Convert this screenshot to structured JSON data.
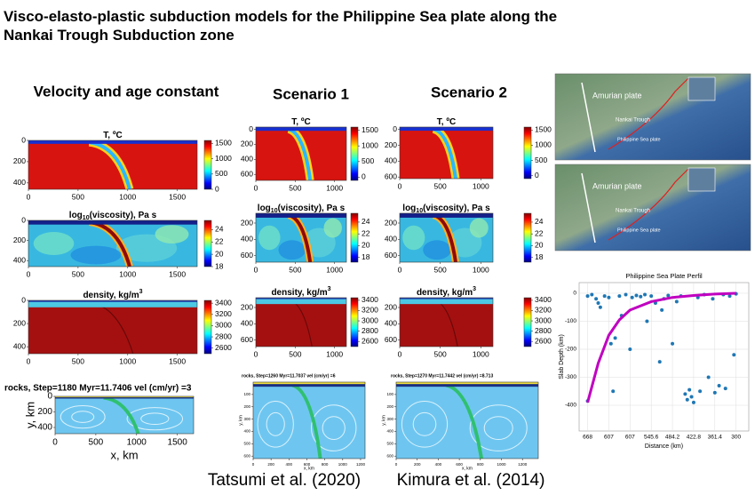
{
  "header": {
    "title": "Visco-elasto-plastic subduction models for the Philippine Sea plate along the Nankai Trough Subduction zone"
  },
  "columns": [
    {
      "heading": "Velocity and age constant",
      "panels": [
        {
          "kind": "T",
          "title": {
            "text": "T, ºC"
          },
          "xlim": [
            0,
            1700
          ],
          "ylim": [
            0,
            460
          ],
          "xticks": [
            0,
            500,
            1000,
            1500
          ],
          "yticks": [
            0,
            200,
            400
          ],
          "clim": [
            0,
            1600
          ],
          "cticks": [
            1500,
            1000,
            500,
            0
          ]
        },
        {
          "kind": "visc",
          "title": {
            "text": "log",
            "sub": "10",
            "after": "(viscosity), Pa s"
          },
          "xlim": [
            0,
            1700
          ],
          "ylim": [
            0,
            460
          ],
          "xticks": [
            0,
            500,
            1000,
            1500
          ],
          "yticks": [
            0,
            200,
            400
          ],
          "clim": [
            18,
            25.5
          ],
          "cticks": [
            24,
            22,
            20,
            18
          ]
        },
        {
          "kind": "dens",
          "title": {
            "text": "density, kg/m",
            "sup": "3"
          },
          "xlim": [
            0,
            1700
          ],
          "ylim": [
            0,
            460
          ],
          "xticks": [
            0,
            500,
            1000,
            1500
          ],
          "yticks": [
            0,
            200,
            400
          ],
          "clim": [
            2500,
            3450
          ],
          "cticks": [
            3400,
            3200,
            3000,
            2800,
            2600
          ]
        }
      ],
      "rocks": {
        "title": "rocks, Step=1180 Myr=11.7406 vel (cm/yr) =3",
        "xlim": [
          0,
          1700
        ],
        "ylim": [
          0,
          480
        ],
        "xticks": [
          0,
          500,
          1000,
          1500
        ],
        "yticks": [
          0,
          200,
          400
        ],
        "xlabel": "x, km",
        "ylabel": "y, km"
      }
    },
    {
      "heading": "Scenario  1",
      "panels": [
        {
          "kind": "T",
          "title": {
            "text": "T, ºC"
          },
          "xlim": [
            0,
            1150
          ],
          "ylim": [
            -30,
            680
          ],
          "xticks": [
            0,
            500,
            1000
          ],
          "yticks": [
            0,
            200,
            400,
            600
          ],
          "clim": [
            -100,
            1600
          ],
          "cticks": [
            1500,
            1000,
            500,
            0
          ]
        },
        {
          "kind": "visc",
          "title": {
            "text": "log",
            "sub": "10",
            "after": "(viscosity), Pa s"
          },
          "xlim": [
            0,
            1150
          ],
          "ylim": [
            80,
            680
          ],
          "xticks": [
            0,
            500,
            1000
          ],
          "yticks": [
            200,
            400,
            600
          ],
          "clim": [
            17.2,
            25.5
          ],
          "cticks": [
            24,
            22,
            20,
            18
          ]
        },
        {
          "kind": "dens",
          "title": {
            "text": "density, kg/m",
            "sup": "3"
          },
          "xlim": [
            0,
            1150
          ],
          "ylim": [
            80,
            680
          ],
          "xticks": [
            0,
            500,
            1000
          ],
          "yticks": [
            200,
            400,
            600
          ],
          "clim": [
            2500,
            3450
          ],
          "cticks": [
            3400,
            3200,
            3000,
            2800,
            2600
          ]
        }
      ],
      "rocks": {
        "title": "rocks, Step=1260 Myr=11.7037 vel (cm/yr) =6",
        "xlim": [
          0,
          1250
        ],
        "ylim": [
          0,
          620
        ],
        "xticks": [
          0,
          200,
          400,
          600,
          800,
          1000,
          1200
        ],
        "yticks": [
          100,
          200,
          300,
          400,
          500,
          600
        ],
        "xlabel": "x, km",
        "ylabel": "y, km"
      }
    },
    {
      "heading": "Scenario  2",
      "panels": [
        {
          "kind": "T",
          "title": {
            "text": "T, ºC"
          },
          "xlim": [
            0,
            1150
          ],
          "ylim": [
            -30,
            620
          ],
          "xticks": [
            0,
            500,
            1000
          ],
          "yticks": [
            0,
            200,
            400,
            600
          ],
          "clim": [
            -100,
            1600
          ],
          "cticks": [
            1500,
            1000,
            500,
            0
          ]
        },
        {
          "kind": "visc",
          "title": {
            "text": "log",
            "sub": "10",
            "after": "(viscosity), Pa s"
          },
          "xlim": [
            0,
            1150
          ],
          "ylim": [
            80,
            680
          ],
          "xticks": [
            0,
            500,
            1000
          ],
          "yticks": [
            200,
            400,
            600
          ],
          "clim": [
            17.2,
            25.5
          ],
          "cticks": [
            24,
            22,
            20,
            18
          ]
        },
        {
          "kind": "dens",
          "title": {
            "text": "density, kg/m",
            "sup": "3"
          },
          "xlim": [
            0,
            1150
          ],
          "ylim": [
            80,
            680
          ],
          "xticks": [
            0,
            500,
            1000
          ],
          "yticks": [
            200,
            400,
            600
          ],
          "clim": [
            2500,
            3450
          ],
          "cticks": [
            3400,
            3200,
            3000,
            2800,
            2600
          ]
        }
      ],
      "rocks": {
        "title": "rocks, Step=1270 Myr=11.7442 vel (cm/yr) =8.713",
        "xlim": [
          0,
          1350
        ],
        "ylim": [
          0,
          620
        ],
        "xticks": [
          0,
          200,
          400,
          600,
          800,
          1000,
          1200
        ],
        "yticks": [
          100,
          200,
          300,
          400,
          500,
          600
        ],
        "xlabel": "x, km",
        "ylabel": "y, km"
      }
    }
  ],
  "captions": [
    "Tatsumi et al. (2020)",
    "Kimura et al. (2014)"
  ],
  "maps": [
    {
      "labels": [
        "Amurian plate",
        "Nankai Trough",
        "Philippine Sea plate"
      ]
    },
    {
      "labels": [
        "Amurian plate",
        "Nankai Trough",
        "Philippine Sea plate"
      ]
    }
  ],
  "chart_data": {
    "type": "scatter",
    "title": "Philippine Sea Plate Perfil",
    "xlabel": "Distance (km)",
    "ylabel": "Slab Depth (km)",
    "grid": true,
    "xlim": [
      -0.4,
      7.6
    ],
    "ylim": [
      -492,
      38
    ],
    "xticks": [
      {
        "value": 0,
        "label": "668"
      },
      {
        "value": 1,
        "label": "607"
      },
      {
        "value": 2,
        "label": "607"
      },
      {
        "value": 3,
        "label": "545.6"
      },
      {
        "value": 4,
        "label": "484.2"
      },
      {
        "value": 5,
        "label": "422.8"
      },
      {
        "value": 6,
        "label": "361.4"
      },
      {
        "value": 7,
        "label": "300"
      }
    ],
    "yticks": [
      0,
      -100,
      -200,
      -300,
      -400
    ],
    "series": [
      {
        "color": "#1f77b4",
        "x": [
          0,
          0,
          0.2,
          0.4,
          0.5,
          0.6,
          0.8,
          1,
          1.1,
          1.2,
          1.3,
          1.5,
          1.6,
          1.8,
          2,
          2.1,
          2.3,
          2.5,
          2.7,
          2.8,
          3,
          3.2,
          3.4,
          3.5,
          3.6,
          3.8,
          4,
          4.2,
          4.4,
          4.6,
          4.7,
          4.8,
          4.9,
          5,
          5.2,
          5.3,
          5.5,
          5.7,
          5.9,
          6,
          6.2,
          6.4,
          6.5,
          6.7,
          6.9,
          7
        ],
        "values": [
          -385,
          -10,
          -5,
          -20,
          -35,
          -50,
          -10,
          -15,
          -180,
          -350,
          -160,
          -10,
          -80,
          -5,
          -200,
          -15,
          -8,
          -12,
          -5,
          -100,
          -10,
          -35,
          -245,
          -60,
          -20,
          -8,
          -180,
          -30,
          -10,
          -360,
          -380,
          -345,
          -370,
          -390,
          -15,
          -350,
          -5,
          -300,
          -20,
          -355,
          -330,
          -5,
          -340,
          -10,
          -220,
          -2
        ]
      },
      {
        "color": "#c000c0",
        "mode": "line",
        "x": [
          0,
          0.5,
          1,
          1.5,
          2,
          3,
          4,
          5,
          6,
          7
        ],
        "values": [
          -390,
          -250,
          -150,
          -95,
          -60,
          -30,
          -15,
          -8,
          -3,
          0
        ]
      }
    ]
  }
}
